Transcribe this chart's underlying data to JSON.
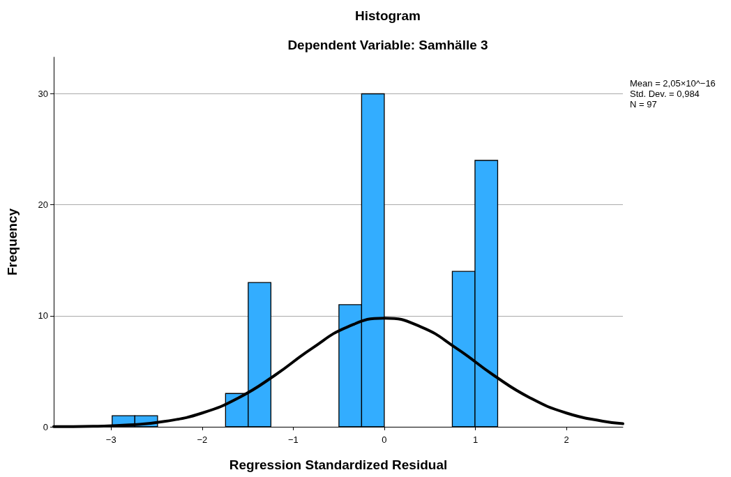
{
  "chart_data": {
    "type": "histogram",
    "title": "Histogram",
    "subtitle": "Dependent Variable: Samhälle 3",
    "xlabel": "Regression Standardized Residual",
    "ylabel": "Frequency",
    "bins": [
      -2.988,
      -2.739,
      -2.49,
      -2.241,
      -1.992,
      -1.743,
      -1.494,
      -1.245,
      -0.996,
      -0.747,
      -0.498,
      -0.249,
      0,
      0.249,
      0.498,
      0.747,
      0.996,
      1.245
    ],
    "values": [
      1,
      1,
      0,
      0,
      0,
      3,
      13,
      0,
      0,
      0,
      11,
      30,
      0,
      0,
      0,
      14,
      24
    ],
    "color": "#33adff",
    "series": [
      {
        "type": "line",
        "color": "#000000",
        "marker": "none",
        "x": [
          -3.63,
          -3.2,
          -2.8,
          -2.4,
          -2.0,
          -1.6,
          -1.2,
          -0.8,
          -0.4,
          0,
          0.4,
          0.8,
          1.2,
          1.6,
          2.0,
          2.4,
          2.62
        ],
        "values": [
          0.01,
          0.05,
          0.17,
          0.5,
          1.24,
          2.61,
          4.65,
          7.03,
          9.01,
          9.79,
          9.01,
          7.03,
          4.65,
          2.61,
          1.24,
          0.5,
          0.28
        ]
      }
    ],
    "xlim": [
      -3.63,
      2.62
    ],
    "xticks": [
      -3,
      -2,
      -1,
      0,
      1,
      2
    ],
    "ylim": [
      0,
      33.3
    ],
    "yticks": [
      0,
      10,
      20,
      30
    ],
    "grid": "y",
    "annotations": [
      "Mean = 2,05×10^−16",
      "Std. Dev. = 0,984",
      "N = 97"
    ]
  }
}
